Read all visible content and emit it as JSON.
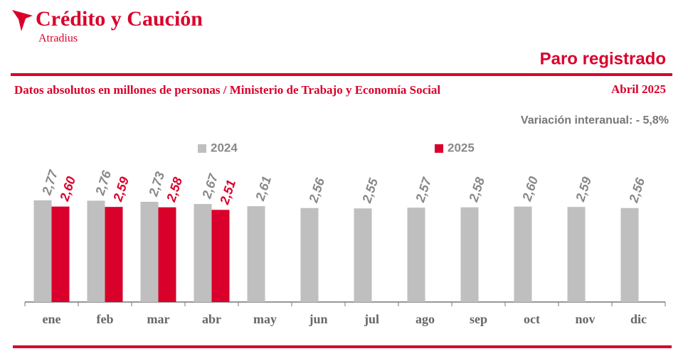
{
  "brand": {
    "name": "Crédito y Caución",
    "sub": "Atradius"
  },
  "chart_data": {
    "type": "bar",
    "title": "Paro registrado",
    "subtitle": "Datos absolutos en millones de personas / Ministerio de Trabajo y Economía Social",
    "date": "Abril 2025",
    "annotation": "Variación interanual: - 5,8%",
    "categories": [
      "ene",
      "feb",
      "mar",
      "abr",
      "may",
      "jun",
      "jul",
      "ago",
      "sep",
      "oct",
      "nov",
      "dic"
    ],
    "series": [
      {
        "name": "2024",
        "color": "#bfbfbf",
        "values": [
          2.77,
          2.76,
          2.73,
          2.67,
          2.61,
          2.56,
          2.55,
          2.57,
          2.58,
          2.6,
          2.59,
          2.56
        ],
        "value_labels": [
          "2,77",
          "2,76",
          "2,73",
          "2,67",
          "2,61",
          "2,56",
          "2,55",
          "2,57",
          "2,58",
          "2,60",
          "2,59",
          "2,56"
        ]
      },
      {
        "name": "2025",
        "color": "#d9002b",
        "values": [
          2.6,
          2.59,
          2.58,
          2.51,
          null,
          null,
          null,
          null,
          null,
          null,
          null,
          null
        ],
        "value_labels": [
          "2,60",
          "2,59",
          "2,58",
          "2,51",
          null,
          null,
          null,
          null,
          null,
          null,
          null,
          null
        ]
      }
    ],
    "ylim": [
      0,
      3
    ]
  }
}
